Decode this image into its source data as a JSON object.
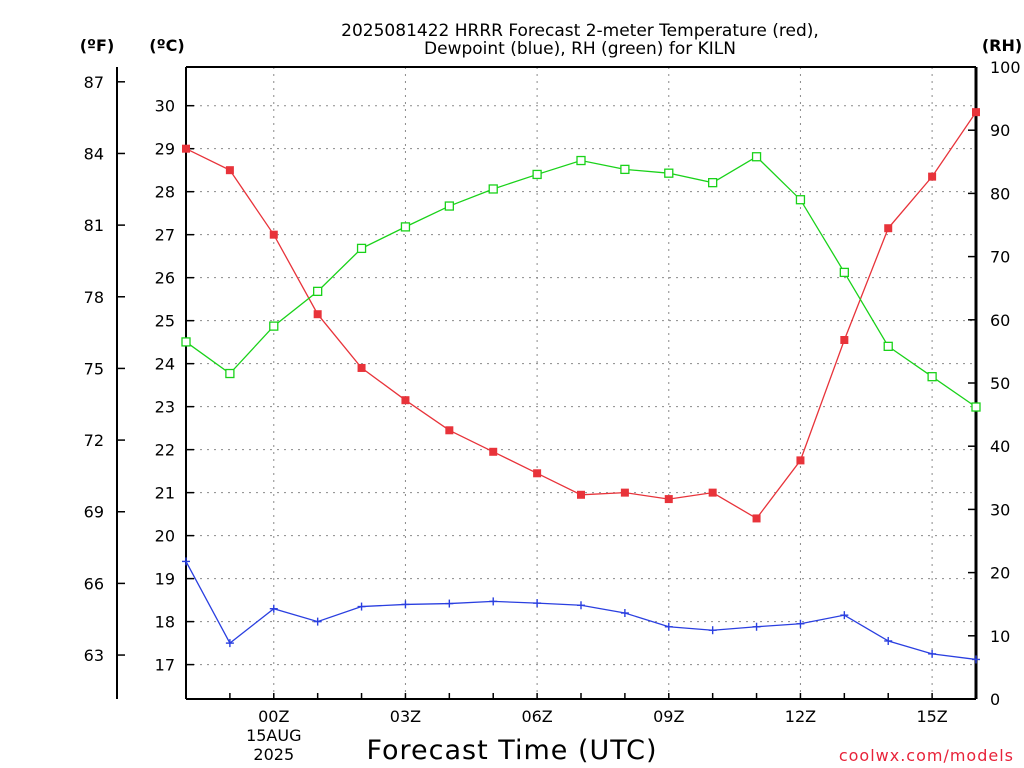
{
  "chart_data": {
    "type": "line",
    "title_line1": "2025081422 HRRR Forecast 2-meter Temperature (red),",
    "title_line2": "Dewpoint (blue), RH (green) for KILN",
    "xlabel": "Forecast Time (UTC)",
    "unit_f": "(ºF)",
    "unit_c": "(ºC)",
    "unit_rh": "(RH)",
    "credit": "coolwx.com/models",
    "x": [
      "22Z",
      "23Z",
      "00Z",
      "01Z",
      "02Z",
      "03Z",
      "04Z",
      "05Z",
      "06Z",
      "07Z",
      "08Z",
      "09Z",
      "10Z",
      "11Z",
      "12Z",
      "13Z",
      "14Z",
      "15Z",
      "16Z"
    ],
    "x_tick_labels": [
      {
        "index": 2,
        "lines": [
          "00Z",
          "15AUG",
          "2025"
        ]
      },
      {
        "index": 5,
        "lines": [
          "03Z"
        ]
      },
      {
        "index": 8,
        "lines": [
          "06Z"
        ]
      },
      {
        "index": 11,
        "lines": [
          "09Z"
        ]
      },
      {
        "index": 14,
        "lines": [
          "12Z"
        ]
      },
      {
        "index": 17,
        "lines": [
          "15Z"
        ]
      }
    ],
    "ylim_c": [
      16.2,
      30.9
    ],
    "yticks_c": [
      17,
      18,
      19,
      20,
      21,
      22,
      23,
      24,
      25,
      26,
      27,
      28,
      29,
      30
    ],
    "yticks_f": [
      63,
      66,
      69,
      72,
      75,
      78,
      81,
      84,
      87
    ],
    "ylim_rh": [
      0,
      100
    ],
    "yticks_rh": [
      0,
      10,
      20,
      30,
      40,
      50,
      60,
      70,
      80,
      90,
      100
    ],
    "grid": true,
    "series": [
      {
        "color": "#e8333a",
        "axis": "c",
        "marker": "filled-square",
        "values": [
          29.0,
          28.5,
          27.0,
          25.15,
          23.9,
          23.15,
          22.45,
          21.95,
          21.45,
          20.95,
          21.0,
          20.85,
          21.0,
          20.4,
          21.75,
          24.55,
          27.15,
          28.35,
          29.85
        ]
      },
      {
        "color": "#2a3fe0",
        "axis": "c",
        "marker": "plus",
        "values": [
          19.4,
          17.5,
          18.3,
          18.0,
          18.35,
          18.4,
          18.42,
          18.47,
          18.43,
          18.38,
          18.2,
          17.88,
          17.8,
          17.88,
          17.95,
          18.15,
          17.55,
          17.25,
          17.12
        ]
      },
      {
        "color": "#19d219",
        "axis": "rh",
        "marker": "open-square",
        "values": [
          56.5,
          51.5,
          59.0,
          64.5,
          71.3,
          74.7,
          78.0,
          80.7,
          83.0,
          85.2,
          83.8,
          83.2,
          81.7,
          85.8,
          79.0,
          67.5,
          55.8,
          51.0,
          46.2
        ]
      }
    ]
  }
}
